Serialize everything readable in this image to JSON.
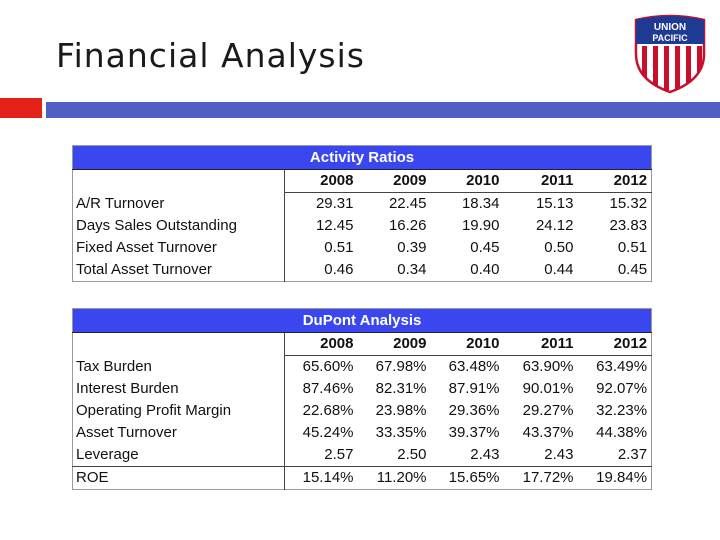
{
  "slide": {
    "title": "Financial Analysis"
  },
  "logo": {
    "line1": "UNION",
    "line2": "PACIFIC"
  },
  "activity": {
    "title": "Activity Ratios",
    "years": [
      "2008",
      "2009",
      "2010",
      "2011",
      "2012"
    ],
    "rows": [
      {
        "label": "A/R Turnover",
        "values": [
          "29.31",
          "22.45",
          "18.34",
          "15.13",
          "15.32"
        ]
      },
      {
        "label": "Days Sales Outstanding",
        "values": [
          "12.45",
          "16.26",
          "19.90",
          "24.12",
          "23.83"
        ]
      },
      {
        "label": "Fixed Asset Turnover",
        "values": [
          "0.51",
          "0.39",
          "0.45",
          "0.50",
          "0.51"
        ]
      },
      {
        "label": "Total Asset Turnover",
        "values": [
          "0.46",
          "0.34",
          "0.40",
          "0.44",
          "0.45"
        ]
      }
    ]
  },
  "dupont": {
    "title": "DuPont Analysis",
    "years": [
      "2008",
      "2009",
      "2010",
      "2011",
      "2012"
    ],
    "rows": [
      {
        "label": "Tax Burden",
        "values": [
          "65.60%",
          "67.98%",
          "63.48%",
          "63.90%",
          "63.49%"
        ]
      },
      {
        "label": "Interest Burden",
        "values": [
          "87.46%",
          "82.31%",
          "87.91%",
          "90.01%",
          "92.07%"
        ]
      },
      {
        "label": "Operating Profit Margin",
        "values": [
          "22.68%",
          "23.98%",
          "29.36%",
          "29.27%",
          "32.23%"
        ]
      },
      {
        "label": "Asset Turnover",
        "values": [
          "45.24%",
          "33.35%",
          "39.37%",
          "43.37%",
          "44.38%"
        ]
      },
      {
        "label": "Leverage",
        "values": [
          "2.57",
          "2.50",
          "2.43",
          "2.43",
          "2.37"
        ]
      },
      {
        "label": "ROE",
        "values": [
          "15.14%",
          "11.20%",
          "15.65%",
          "17.72%",
          "19.84%"
        ]
      }
    ]
  }
}
